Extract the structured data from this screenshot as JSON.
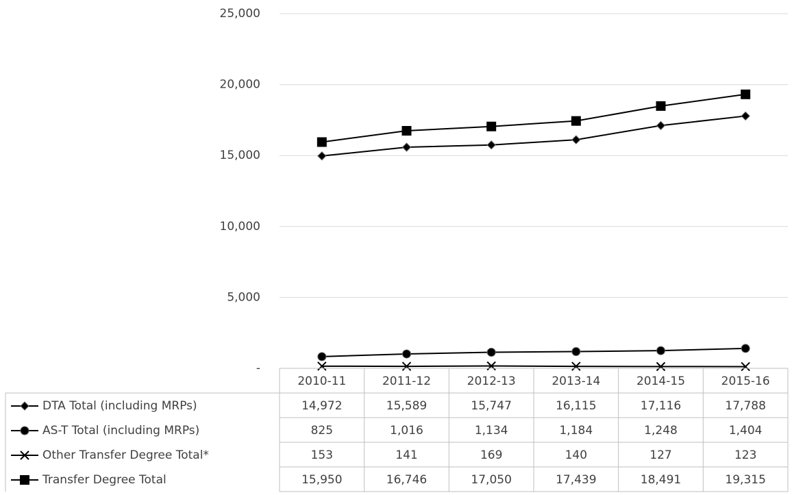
{
  "chart_data": {
    "type": "line",
    "categories": [
      "2010-11",
      "2011-12",
      "2012-13",
      "2013-14",
      "2014-15",
      "2015-16"
    ],
    "series": [
      {
        "name": "DTA Total (including MRPs)",
        "color": "#000000",
        "marker": "diamond",
        "values": [
          14972,
          15589,
          15747,
          16115,
          17116,
          17788
        ],
        "value_labels": [
          "14,972",
          "15,589",
          "15,747",
          "16,115",
          "17,116",
          "17,788"
        ]
      },
      {
        "name": "AS-T Total (including MRPs)",
        "color": "#000000",
        "marker": "circle",
        "values": [
          825,
          1016,
          1134,
          1184,
          1248,
          1404
        ],
        "value_labels": [
          "825",
          "1,016",
          "1,134",
          "1,184",
          "1,248",
          "1,404"
        ]
      },
      {
        "name": "Other Transfer Degree Total*",
        "color": "#000000",
        "marker": "x",
        "values": [
          153,
          141,
          169,
          140,
          127,
          123
        ],
        "value_labels": [
          "153",
          "141",
          "169",
          "140",
          "127",
          "123"
        ]
      },
      {
        "name": "Transfer Degree Total",
        "color": "#000000",
        "marker": "square",
        "values": [
          15950,
          16746,
          17050,
          17439,
          18491,
          19315
        ],
        "value_labels": [
          "15,950",
          "16,746",
          "17,050",
          "17,439",
          "18,491",
          "19,315"
        ]
      }
    ],
    "ylim": [
      0,
      25000
    ],
    "yticks": [
      {
        "value": 0,
        "label": "-"
      },
      {
        "value": 5000,
        "label": "5,000"
      },
      {
        "value": 10000,
        "label": "10,000"
      },
      {
        "value": 15000,
        "label": "15,000"
      },
      {
        "value": 20000,
        "label": "20,000"
      },
      {
        "value": 25000,
        "label": "25,000"
      }
    ],
    "grid": true,
    "data_table": true
  }
}
